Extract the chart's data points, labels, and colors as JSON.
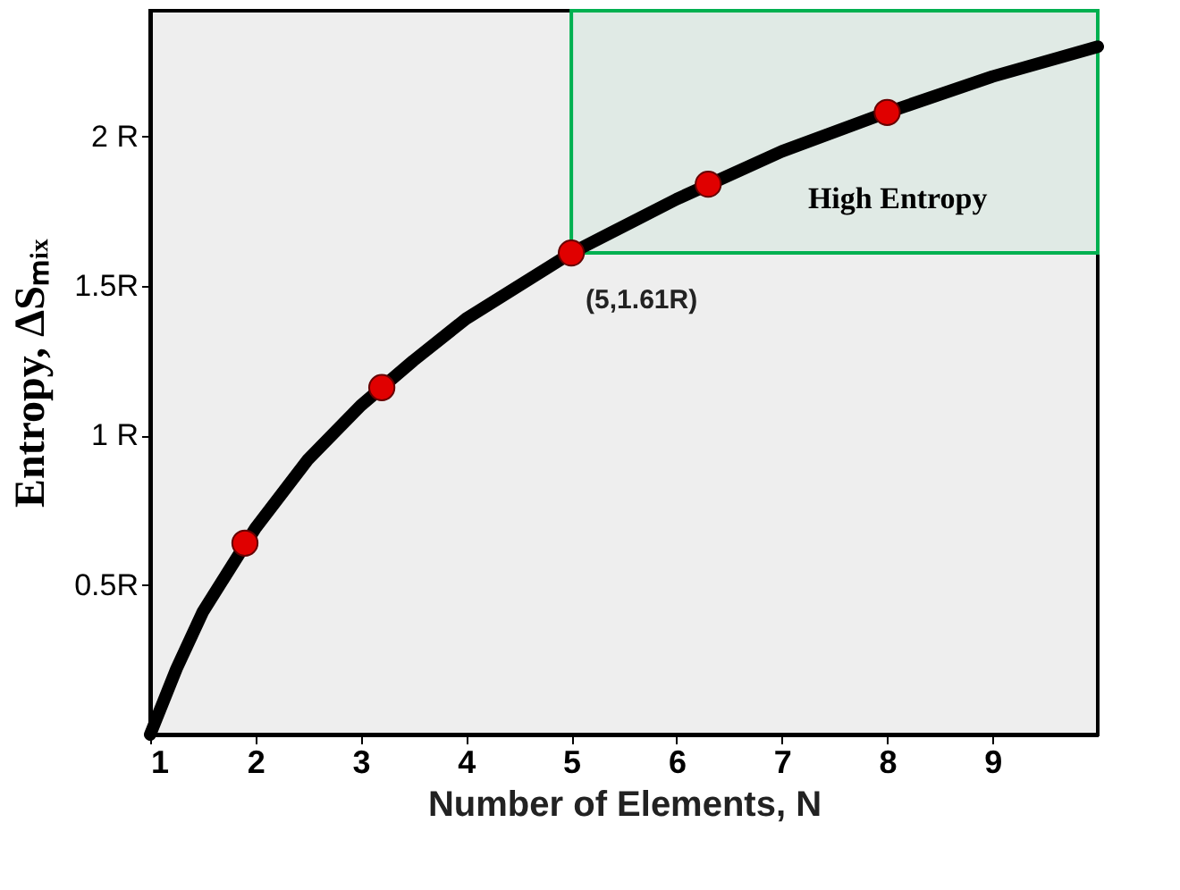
{
  "chart_data": {
    "type": "line",
    "xlabel": "Number of Elements, N",
    "ylabel": "Entropy, ΔSₘᵢₓ",
    "xlim": [
      1,
      10
    ],
    "ylim": [
      0,
      2.42
    ],
    "xticks": [
      1,
      2,
      3,
      4,
      5,
      6,
      7,
      8,
      9
    ],
    "yticks": [
      {
        "value": 0.5,
        "label": "0.5R"
      },
      {
        "value": 1,
        "label": "1 R"
      },
      {
        "value": 1.5,
        "label": "1.5R"
      },
      {
        "value": 2,
        "label": "2 R"
      }
    ],
    "grid": false,
    "series": [
      {
        "color": "#000000",
        "marker": "none",
        "x": [
          1,
          1.25,
          1.5,
          2,
          2.5,
          3,
          3.5,
          4,
          5,
          6,
          7,
          8,
          9,
          10
        ],
        "values": [
          0,
          0.22,
          0.41,
          0.69,
          0.92,
          1.1,
          1.25,
          1.39,
          1.61,
          1.79,
          1.95,
          2.08,
          2.2,
          2.3
        ]
      },
      {
        "type": "scatter",
        "color": "#e00000",
        "marker": "circle",
        "x": [
          1.9,
          3.2,
          5,
          6.3,
          8
        ],
        "values": [
          0.64,
          1.16,
          1.61,
          1.84,
          2.08
        ]
      }
    ],
    "annotations": [
      {
        "text": "(5,1.61R)",
        "x": 5,
        "y": 1.61
      }
    ],
    "bands": [
      {
        "axis": "y",
        "from": 1.61,
        "to": 2.42,
        "label": "High Entropy",
        "color": "#00b050"
      }
    ]
  }
}
